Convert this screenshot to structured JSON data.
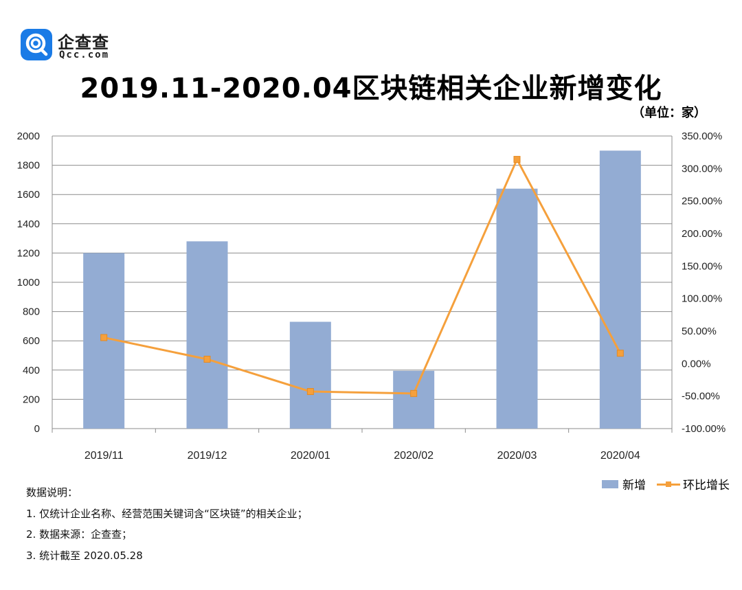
{
  "logo": {
    "name": "企查查",
    "domain": "Qcc.com"
  },
  "header": {
    "title": "2019.11-2020.04区块链相关企业新增变化",
    "unit": "（单位：家）"
  },
  "colors": {
    "bar": "#93acd3",
    "line": "#f5a03c",
    "logo": "#1a7be6"
  },
  "chart_data": {
    "type": "bar+line",
    "title": "2019.11-2020.04区块链相关企业新增变化",
    "categories": [
      "2019/11",
      "2019/12",
      "2020/01",
      "2020/02",
      "2020/03",
      "2020/04"
    ],
    "series": [
      {
        "name": "新增",
        "type": "bar",
        "axis": "left",
        "values": [
          1200,
          1280,
          730,
          395,
          1640,
          1900
        ]
      },
      {
        "name": "环比增长",
        "type": "line",
        "axis": "right",
        "values": [
          40.0,
          6.7,
          -43.0,
          -46.0,
          314.0,
          15.9
        ]
      }
    ],
    "y_left": {
      "min": 0,
      "max": 2000,
      "step": 200,
      "tick_labels": [
        "0",
        "200",
        "400",
        "600",
        "800",
        "1000",
        "1200",
        "1400",
        "1600",
        "1800",
        "2000"
      ]
    },
    "y_right": {
      "min": -100,
      "max": 350,
      "step": 50,
      "tick_labels": [
        "-100.00%",
        "-50.00%",
        "0.00%",
        "50.00%",
        "100.00%",
        "150.00%",
        "200.00%",
        "250.00%",
        "300.00%",
        "350.00%"
      ]
    },
    "grid": true,
    "legend": "bottom-right"
  },
  "legend": {
    "bar_label": "新增",
    "line_label": "环比增长"
  },
  "notes": {
    "heading": "数据说明：",
    "items": [
      "1. 仅统计企业名称、经营范围关键词含“区块链”的相关企业；",
      "2. 数据来源：企查查；",
      "3. 统计截至 2020.05.28"
    ]
  }
}
